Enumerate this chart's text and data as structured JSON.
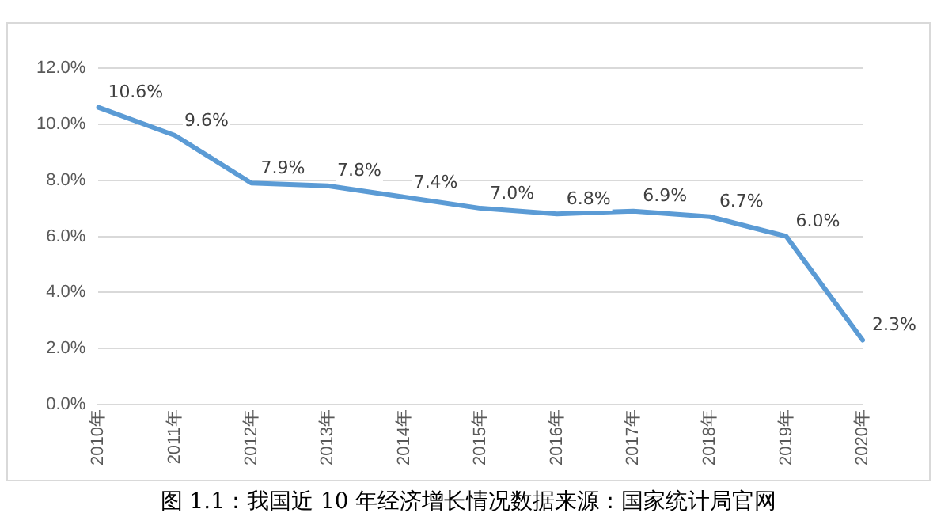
{
  "chart_data": {
    "type": "line",
    "categories": [
      "2010年",
      "2011年",
      "2012年",
      "2013年",
      "2014年",
      "2015年",
      "2016年",
      "2017年",
      "2018年",
      "2019年",
      "2020年"
    ],
    "series": [
      {
        "color": "#5b9bd5",
        "values": [
          10.6,
          9.6,
          7.9,
          7.8,
          7.4,
          7.0,
          6.8,
          6.9,
          6.7,
          6.0,
          2.3
        ],
        "value_labels": [
          "10.6%",
          "9.6%",
          "7.9%",
          "7.8%",
          "7.4%",
          "7.0%",
          "6.8%",
          "6.9%",
          "6.7%",
          "6.0%",
          "2.3%"
        ]
      }
    ],
    "ylim": [
      0,
      12
    ],
    "yticks": [
      {
        "value": 0,
        "label": "0.0%"
      },
      {
        "value": 2,
        "label": "2.0%"
      },
      {
        "value": 4,
        "label": "4.0%"
      },
      {
        "value": 6,
        "label": "6.0%"
      },
      {
        "value": 8,
        "label": "8.0%"
      },
      {
        "value": 10,
        "label": "10.0%"
      },
      {
        "value": 12,
        "label": "12.0%"
      }
    ],
    "grid": "y",
    "legend": false,
    "marker": "none",
    "line_style": "solid",
    "annotations": [
      "图 1.1：我国近 10 年经济增长情况数据来源：国家统计局官网"
    ]
  }
}
